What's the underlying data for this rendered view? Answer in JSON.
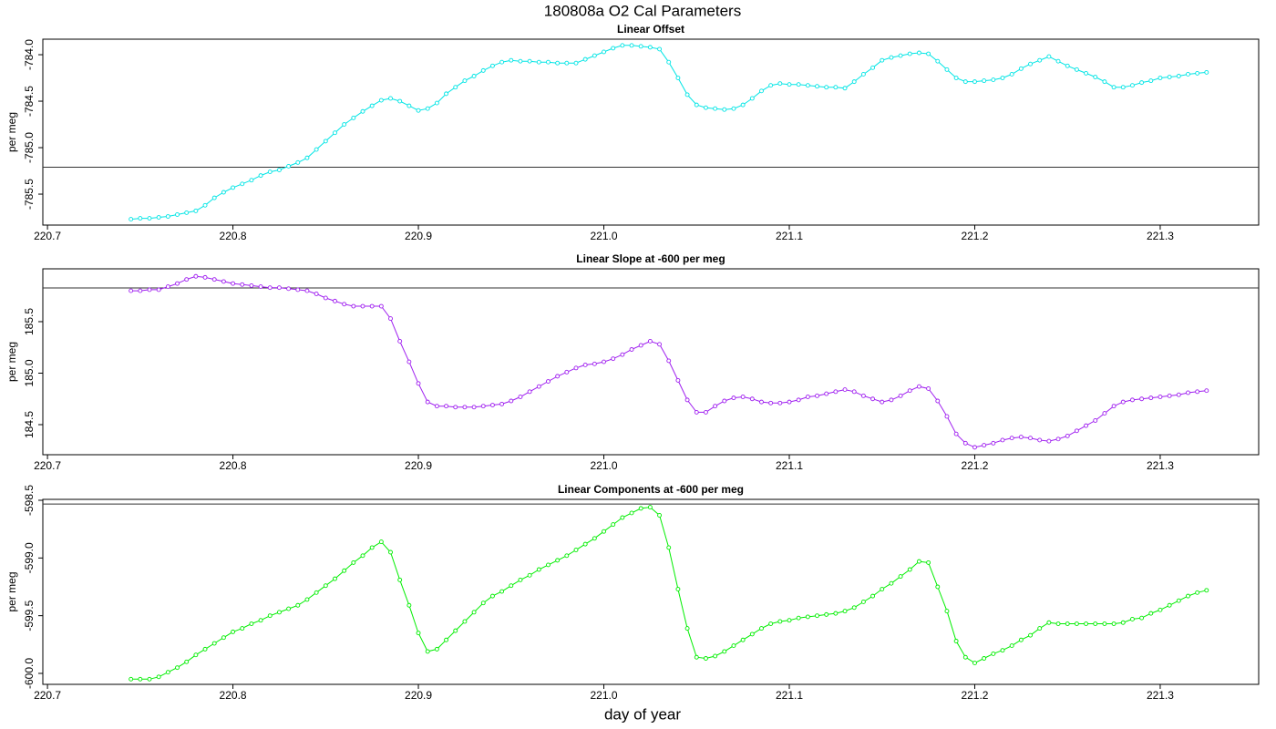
{
  "title": "180808a   O2 Cal Parameters",
  "xlabel": "day of year",
  "chart_data": [
    {
      "type": "line",
      "title": "Linear Offset",
      "ylabel": "per meg",
      "color": "#00e5e5",
      "hline": -785.21,
      "xlim": [
        220.6975,
        221.3531
      ],
      "xticks": [
        220.7,
        220.8,
        220.9,
        {
          "value": 221,
          "label": "221.0"
        },
        221.1,
        221.2,
        221.3
      ],
      "ylim": [
        -785.833,
        -783.833
      ],
      "yticks": [
        -785.5,
        {
          "value": -785,
          "label": "-785.0"
        },
        -784.5,
        {
          "value": -784,
          "label": "-784.0"
        }
      ],
      "x": [
        220.745,
        220.75,
        220.755,
        220.76,
        220.765,
        220.77,
        220.775,
        220.78,
        220.785,
        220.79,
        220.795,
        220.8,
        220.805,
        220.81,
        220.815,
        220.82,
        220.825,
        220.83,
        220.835,
        220.84,
        220.845,
        220.85,
        220.855,
        220.86,
        220.865,
        220.87,
        220.875,
        220.88,
        220.885,
        220.89,
        220.895,
        220.9,
        220.905,
        220.91,
        220.915,
        220.92,
        220.925,
        220.93,
        220.935,
        220.94,
        220.945,
        220.95,
        220.955,
        220.96,
        220.965,
        220.97,
        220.975,
        220.98,
        220.985,
        220.99,
        220.995,
        221.0,
        221.005,
        221.01,
        221.015,
        221.02,
        221.025,
        221.03,
        221.035,
        221.04,
        221.045,
        221.05,
        221.055,
        221.06,
        221.065,
        221.07,
        221.075,
        221.08,
        221.085,
        221.09,
        221.095,
        221.1,
        221.105,
        221.11,
        221.115,
        221.12,
        221.125,
        221.13,
        221.135,
        221.14,
        221.145,
        221.15,
        221.155,
        221.16,
        221.165,
        221.17,
        221.175,
        221.18,
        221.185,
        221.19,
        221.195,
        221.2,
        221.205,
        221.21,
        221.215,
        221.22,
        221.225,
        221.23,
        221.235,
        221.24,
        221.245,
        221.25,
        221.255,
        221.26,
        221.265,
        221.27,
        221.275,
        221.28,
        221.285,
        221.29,
        221.295,
        221.3,
        221.305,
        221.31,
        221.315,
        221.32,
        221.325
      ],
      "values": [
        -785.77,
        -785.76,
        -785.76,
        -785.75,
        -785.74,
        -785.72,
        -785.7,
        -785.68,
        -785.62,
        -785.54,
        -785.48,
        -785.43,
        -785.39,
        -785.35,
        -785.3,
        -785.26,
        -785.24,
        -785.2,
        -785.16,
        -785.11,
        -785.02,
        -784.93,
        -784.84,
        -784.75,
        -784.68,
        -784.61,
        -784.55,
        -784.49,
        -784.47,
        -784.5,
        -784.55,
        -784.6,
        -784.58,
        -784.52,
        -784.42,
        -784.35,
        -784.28,
        -784.23,
        -784.17,
        -784.12,
        -784.08,
        -784.06,
        -784.07,
        -784.07,
        -784.08,
        -784.08,
        -784.09,
        -784.09,
        -784.09,
        -784.05,
        -784.01,
        -783.97,
        -783.93,
        -783.9,
        -783.9,
        -783.91,
        -783.92,
        -783.94,
        -784.08,
        -784.25,
        -784.43,
        -784.54,
        -784.57,
        -784.58,
        -784.59,
        -784.58,
        -784.54,
        -784.47,
        -784.39,
        -784.33,
        -784.31,
        -784.32,
        -784.32,
        -784.33,
        -784.34,
        -784.35,
        -784.35,
        -784.36,
        -784.29,
        -784.21,
        -784.14,
        -784.06,
        -784.03,
        -784.01,
        -783.99,
        -783.98,
        -783.99,
        -784.07,
        -784.16,
        -784.25,
        -784.29,
        -784.29,
        -784.28,
        -784.27,
        -784.25,
        -784.21,
        -784.15,
        -784.1,
        -784.06,
        -784.02,
        -784.07,
        -784.12,
        -784.16,
        -784.2,
        -784.24,
        -784.29,
        -784.35,
        -784.35,
        -784.33,
        -784.3,
        -784.28,
        -784.25,
        -784.24,
        -784.23,
        -784.21,
        -784.2,
        -784.19
      ]
    },
    {
      "type": "line",
      "title": "Linear Slope at -600 per meg",
      "ylabel": "per meg",
      "color": "#a020f0",
      "hline": 185.827,
      "xlim": [
        220.6975,
        221.3531
      ],
      "xticks": [
        220.7,
        220.8,
        220.9,
        {
          "value": 221,
          "label": "221.0"
        },
        221.1,
        221.2,
        221.3
      ],
      "ylim": [
        184.208,
        186.013
      ],
      "yticks": [
        184.5,
        {
          "value": 185,
          "label": "185.0"
        },
        185.5
      ],
      "x": [
        220.745,
        220.75,
        220.755,
        220.76,
        220.765,
        220.77,
        220.775,
        220.78,
        220.785,
        220.79,
        220.795,
        220.8,
        220.805,
        220.81,
        220.815,
        220.82,
        220.825,
        220.83,
        220.835,
        220.84,
        220.845,
        220.85,
        220.855,
        220.86,
        220.865,
        220.87,
        220.875,
        220.88,
        220.885,
        220.89,
        220.895,
        220.9,
        220.905,
        220.91,
        220.915,
        220.92,
        220.925,
        220.93,
        220.935,
        220.94,
        220.945,
        220.95,
        220.955,
        220.96,
        220.965,
        220.97,
        220.975,
        220.98,
        220.985,
        220.99,
        220.995,
        221.0,
        221.005,
        221.01,
        221.015,
        221.02,
        221.025,
        221.03,
        221.035,
        221.04,
        221.045,
        221.05,
        221.055,
        221.06,
        221.065,
        221.07,
        221.075,
        221.08,
        221.085,
        221.09,
        221.095,
        221.1,
        221.105,
        221.11,
        221.115,
        221.12,
        221.125,
        221.13,
        221.135,
        221.14,
        221.145,
        221.15,
        221.155,
        221.16,
        221.165,
        221.17,
        221.175,
        221.18,
        221.185,
        221.19,
        221.195,
        221.2,
        221.205,
        221.21,
        221.215,
        221.22,
        221.225,
        221.23,
        221.235,
        221.24,
        221.245,
        221.25,
        221.255,
        221.26,
        221.265,
        221.27,
        221.275,
        221.28,
        221.285,
        221.29,
        221.295,
        221.3,
        221.305,
        221.31,
        221.315,
        221.32,
        221.325
      ],
      "values": [
        185.8,
        185.8,
        185.81,
        185.81,
        185.84,
        185.87,
        185.91,
        185.94,
        185.93,
        185.91,
        185.89,
        185.87,
        185.86,
        185.85,
        185.84,
        185.83,
        185.83,
        185.82,
        185.81,
        185.8,
        185.77,
        185.73,
        185.7,
        185.67,
        185.65,
        185.65,
        185.65,
        185.65,
        185.53,
        185.31,
        185.11,
        184.9,
        184.72,
        184.68,
        184.68,
        184.67,
        184.67,
        184.67,
        184.68,
        184.69,
        184.7,
        184.73,
        184.77,
        184.82,
        184.87,
        184.92,
        184.97,
        185.01,
        185.05,
        185.08,
        185.09,
        185.11,
        185.14,
        185.18,
        185.23,
        185.27,
        185.31,
        185.28,
        185.12,
        184.93,
        184.74,
        184.62,
        184.62,
        184.68,
        184.73,
        184.76,
        184.77,
        184.75,
        184.72,
        184.71,
        184.71,
        184.72,
        184.74,
        184.77,
        184.78,
        184.8,
        184.82,
        184.84,
        184.82,
        184.78,
        184.75,
        184.72,
        184.74,
        184.78,
        184.83,
        184.87,
        184.85,
        184.73,
        184.58,
        184.41,
        184.32,
        184.28,
        184.3,
        184.32,
        184.35,
        184.37,
        184.38,
        184.37,
        184.35,
        184.34,
        184.36,
        184.39,
        184.44,
        184.49,
        184.54,
        184.61,
        184.68,
        184.72,
        184.74,
        184.75,
        184.76,
        184.77,
        184.78,
        184.79,
        184.81,
        184.82,
        184.83
      ]
    },
    {
      "type": "line",
      "title": "Linear Components at -600 per meg",
      "ylabel": "per meg",
      "color": "#00ee00",
      "hline": -598.532,
      "xlim": [
        220.6975,
        221.3531
      ],
      "xticks": [
        220.7,
        220.8,
        220.9,
        {
          "value": 221,
          "label": "221.0"
        },
        221.1,
        221.2,
        221.3
      ],
      "ylim": [
        -600.095,
        -598.492
      ],
      "yticks": [
        {
          "value": -600,
          "label": "-600.0"
        },
        -599.5,
        {
          "value": -599,
          "label": "-599.0"
        },
        -598.5
      ],
      "x": [
        220.745,
        220.75,
        220.755,
        220.76,
        220.765,
        220.77,
        220.775,
        220.78,
        220.785,
        220.79,
        220.795,
        220.8,
        220.805,
        220.81,
        220.815,
        220.82,
        220.825,
        220.83,
        220.835,
        220.84,
        220.845,
        220.85,
        220.855,
        220.86,
        220.865,
        220.87,
        220.875,
        220.88,
        220.885,
        220.89,
        220.895,
        220.9,
        220.905,
        220.91,
        220.915,
        220.92,
        220.925,
        220.93,
        220.935,
        220.94,
        220.945,
        220.95,
        220.955,
        220.96,
        220.965,
        220.97,
        220.975,
        220.98,
        220.985,
        220.99,
        220.995,
        221.0,
        221.005,
        221.01,
        221.015,
        221.02,
        221.025,
        221.03,
        221.035,
        221.04,
        221.045,
        221.05,
        221.055,
        221.06,
        221.065,
        221.07,
        221.075,
        221.08,
        221.085,
        221.09,
        221.095,
        221.1,
        221.105,
        221.11,
        221.115,
        221.12,
        221.125,
        221.13,
        221.135,
        221.14,
        221.145,
        221.15,
        221.155,
        221.16,
        221.165,
        221.17,
        221.175,
        221.18,
        221.185,
        221.19,
        221.195,
        221.2,
        221.205,
        221.21,
        221.215,
        221.22,
        221.225,
        221.23,
        221.235,
        221.24,
        221.245,
        221.25,
        221.255,
        221.26,
        221.265,
        221.27,
        221.275,
        221.28,
        221.285,
        221.29,
        221.295,
        221.3,
        221.305,
        221.31,
        221.315,
        221.32,
        221.325
      ],
      "values": [
        -600.05,
        -600.05,
        -600.05,
        -600.03,
        -599.99,
        -599.95,
        -599.9,
        -599.84,
        -599.79,
        -599.74,
        -599.69,
        -599.64,
        -599.61,
        -599.57,
        -599.54,
        -599.5,
        -599.47,
        -599.44,
        -599.41,
        -599.36,
        -599.3,
        -599.24,
        -599.18,
        -599.11,
        -599.04,
        -598.98,
        -598.91,
        -598.86,
        -598.95,
        -599.19,
        -599.41,
        -599.65,
        -599.81,
        -599.79,
        -599.71,
        -599.63,
        -599.55,
        -599.47,
        -599.39,
        -599.33,
        -599.29,
        -599.24,
        -599.19,
        -599.15,
        -599.1,
        -599.06,
        -599.02,
        -598.98,
        -598.93,
        -598.88,
        -598.83,
        -598.77,
        -598.71,
        -598.65,
        -598.61,
        -598.57,
        -598.56,
        -598.63,
        -598.91,
        -599.27,
        -599.61,
        -599.86,
        -599.87,
        -599.85,
        -599.81,
        -599.76,
        -599.71,
        -599.66,
        -599.61,
        -599.57,
        -599.55,
        -599.54,
        -599.52,
        -599.51,
        -599.5,
        -599.49,
        -599.48,
        -599.46,
        -599.43,
        -599.38,
        -599.33,
        -599.27,
        -599.22,
        -599.16,
        -599.1,
        -599.03,
        -599.04,
        -599.25,
        -599.46,
        -599.72,
        -599.86,
        -599.91,
        -599.87,
        -599.83,
        -599.8,
        -599.76,
        -599.71,
        -599.67,
        -599.61,
        -599.56,
        -599.57,
        -599.57,
        -599.57,
        -599.57,
        -599.57,
        -599.57,
        -599.57,
        -599.56,
        -599.53,
        -599.52,
        -599.48,
        -599.45,
        -599.41,
        -599.37,
        -599.33,
        -599.3,
        -599.28
      ]
    }
  ]
}
